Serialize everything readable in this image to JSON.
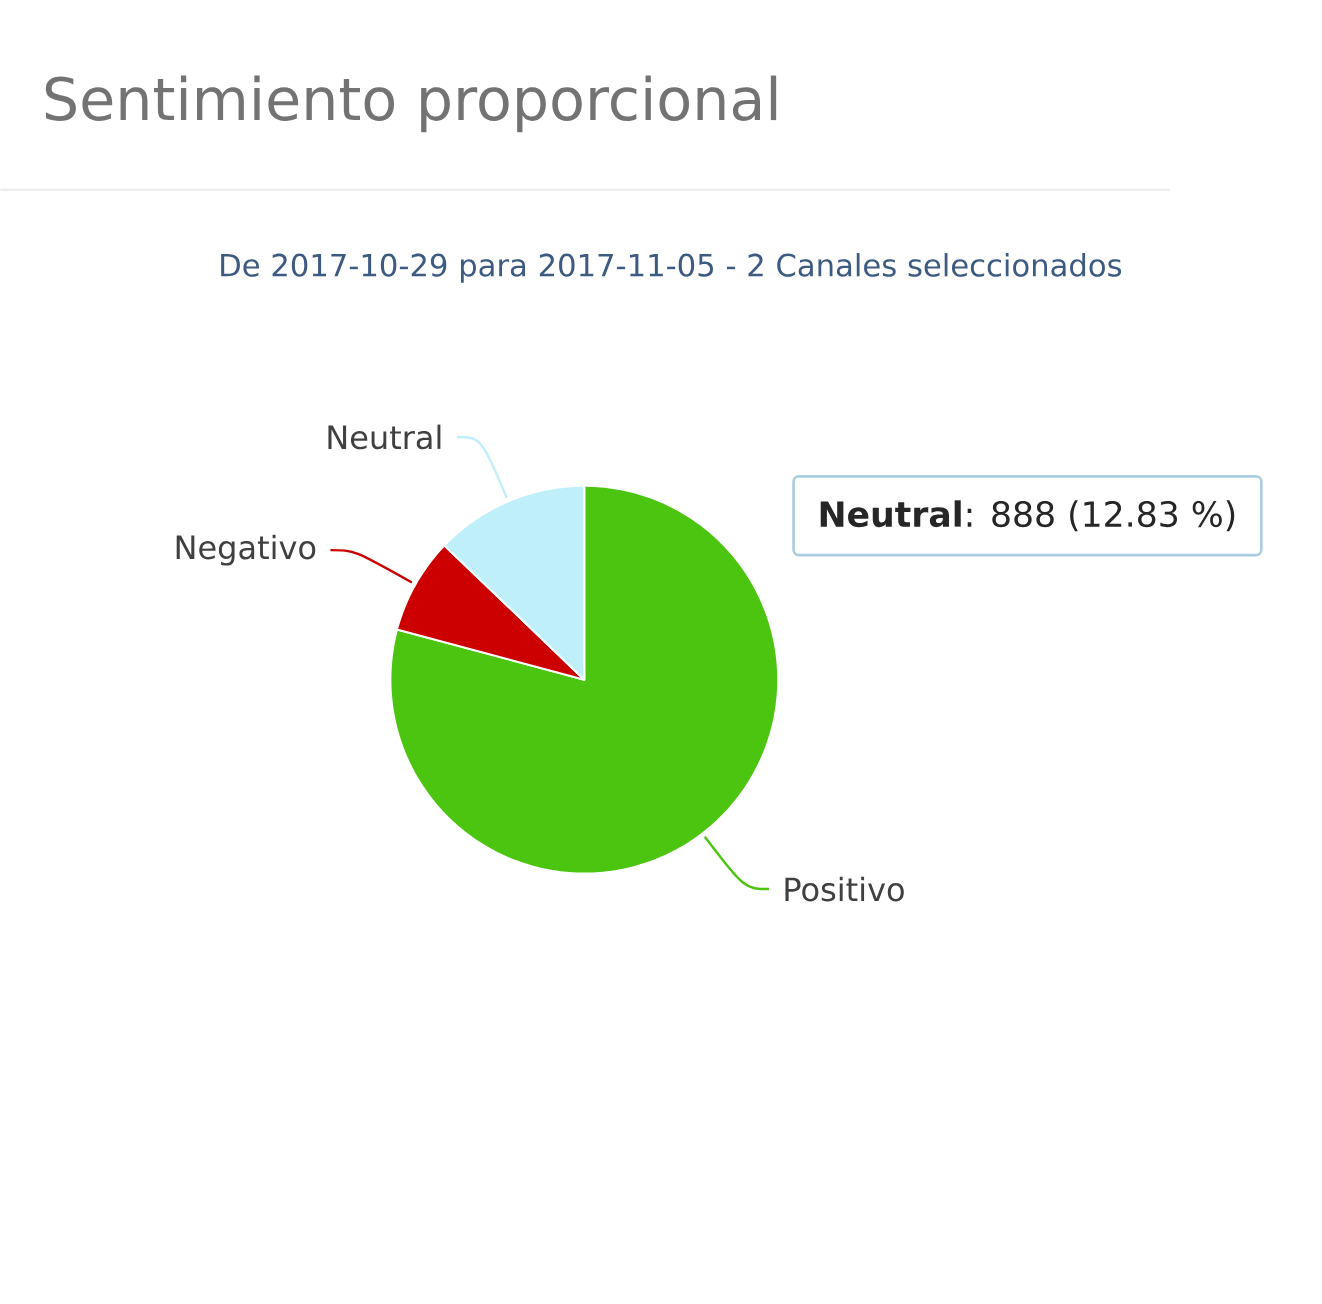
{
  "chart_data": {
    "type": "pie",
    "title": "Sentimiento proporcional",
    "subtitle": "De 2017-10-29 para 2017-11-05 - 2 Canales seleccionados",
    "categories": [
      "Positivo",
      "Negativo",
      "Neutral"
    ],
    "values": [
      79.17,
      8,
      12.83
    ],
    "colors": [
      "#4cc510",
      "#cc0000",
      "#bff0fa"
    ],
    "annotations": [
      "**Neutral**: 888 (12.83 %)"
    ]
  }
}
